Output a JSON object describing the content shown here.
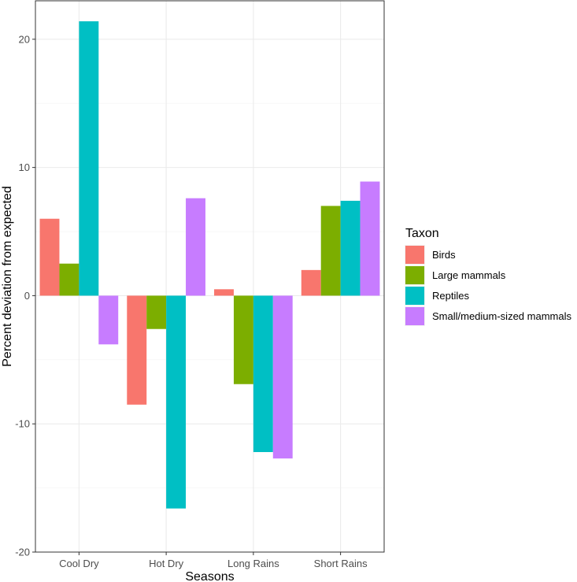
{
  "chart_data": {
    "type": "bar",
    "title": "",
    "xlabel": "Seasons",
    "ylabel": "Percent deviation from expected",
    "ylim": [
      -20,
      23
    ],
    "yticks": [
      -20,
      -10,
      0,
      10,
      20
    ],
    "ytick_labels": [
      "-20",
      "-10",
      "0",
      "10",
      "20"
    ],
    "categories": [
      "Cool Dry",
      "Hot Dry",
      "Long Rains",
      "Short Rains"
    ],
    "legend_title": "Taxon",
    "legend_position": "right",
    "grid": true,
    "series": [
      {
        "name": "Birds",
        "color": "#F8766D",
        "values": [
          6.0,
          -8.5,
          0.5,
          2.0
        ]
      },
      {
        "name": "Large mammals",
        "color": "#7CAE00",
        "values": [
          2.5,
          -2.6,
          -6.9,
          7.0
        ]
      },
      {
        "name": "Reptiles",
        "color": "#00BFC4",
        "values": [
          21.4,
          -16.6,
          -12.2,
          7.4
        ]
      },
      {
        "name": "Small/medium-sized mammals",
        "color": "#C77CFF",
        "values": [
          -3.8,
          7.6,
          -12.7,
          8.9
        ]
      }
    ]
  }
}
